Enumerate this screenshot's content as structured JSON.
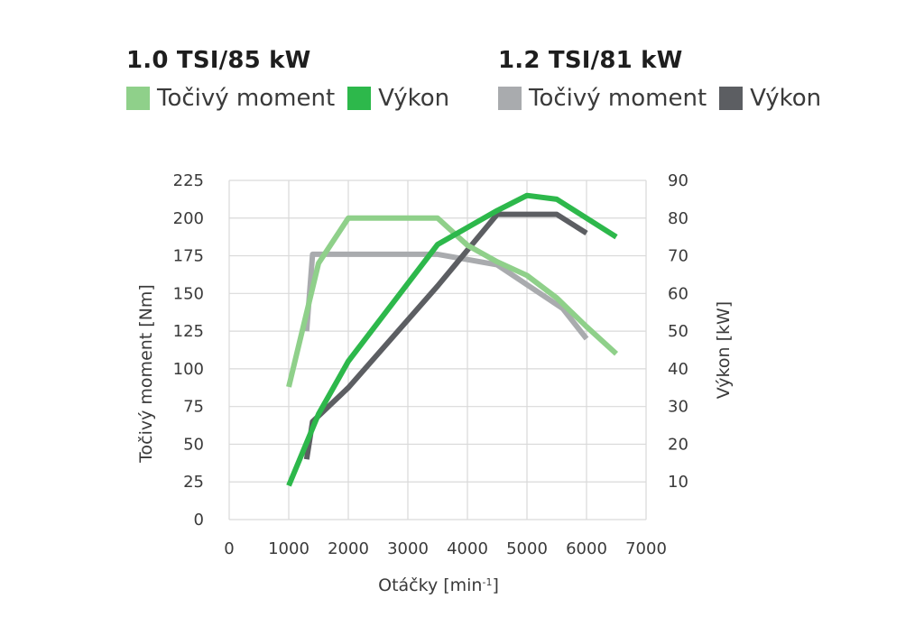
{
  "legend": {
    "groups": [
      {
        "title": "1.0 TSI/85 kW",
        "entries": [
          {
            "label": "Točivý moment",
            "color": "#8fd08a"
          },
          {
            "label": "Výkon",
            "color": "#2db84b"
          }
        ]
      },
      {
        "title": "1.2 TSI/81 kW",
        "entries": [
          {
            "label": "Točivý moment",
            "color": "#a9abae"
          },
          {
            "label": "Výkon",
            "color": "#5c5e62"
          }
        ]
      }
    ]
  },
  "chart_data": {
    "type": "line",
    "xlabel": "Otáčky [min",
    "xlabel_sup": "-1",
    "xlabel_close": "]",
    "ylabel_left": "Točivý moment  [Nm]",
    "ylabel_right": "Výkon [kW]",
    "xlim": [
      0,
      7000
    ],
    "ylim_left": [
      0,
      225
    ],
    "ylim_right": [
      0,
      90
    ],
    "x_ticks": [
      "0",
      "1000",
      "2000",
      "3000",
      "4000",
      "5000",
      "6000",
      "7000"
    ],
    "y_left_ticks": [
      "0",
      "25",
      "50",
      "75",
      "100",
      "125",
      "150",
      "175",
      "200",
      "225"
    ],
    "y_right_ticks": [
      "10",
      "20",
      "30",
      "40",
      "50",
      "60",
      "70",
      "80",
      "90"
    ],
    "grid": true,
    "legend_position": "top",
    "series": [
      {
        "name": "Točivý moment",
        "engine": "1.2 TSI/81 kW",
        "axis": "left",
        "color": "#a9abae",
        "x": [
          1300,
          1400,
          3500,
          4500,
          5600,
          6000
        ],
        "y": [
          125,
          176,
          176,
          169,
          140,
          120
        ]
      },
      {
        "name": "Výkon",
        "engine": "1.2 TSI/81 kW",
        "axis": "right",
        "color": "#5c5e62",
        "x": [
          1300,
          1400,
          2000,
          3500,
          4500,
          5500,
          6000
        ],
        "y": [
          16,
          26,
          35,
          62,
          81,
          81,
          76
        ]
      },
      {
        "name": "Točivý moment",
        "engine": "1.0 TSI/85 kW",
        "axis": "left",
        "color": "#8fd08a",
        "x": [
          1000,
          1500,
          2000,
          3500,
          4000,
          4500,
          5000,
          5500,
          6000,
          6500
        ],
        "y": [
          88,
          170,
          200,
          200,
          182,
          171,
          162,
          147,
          128,
          110
        ]
      },
      {
        "name": "Výkon",
        "engine": "1.0 TSI/85 kW",
        "axis": "right",
        "color": "#2db84b",
        "x": [
          1000,
          1500,
          2000,
          3500,
          4500,
          5000,
          5500,
          6500
        ],
        "y": [
          9,
          28,
          42,
          73,
          82,
          86,
          85,
          75
        ]
      }
    ]
  }
}
